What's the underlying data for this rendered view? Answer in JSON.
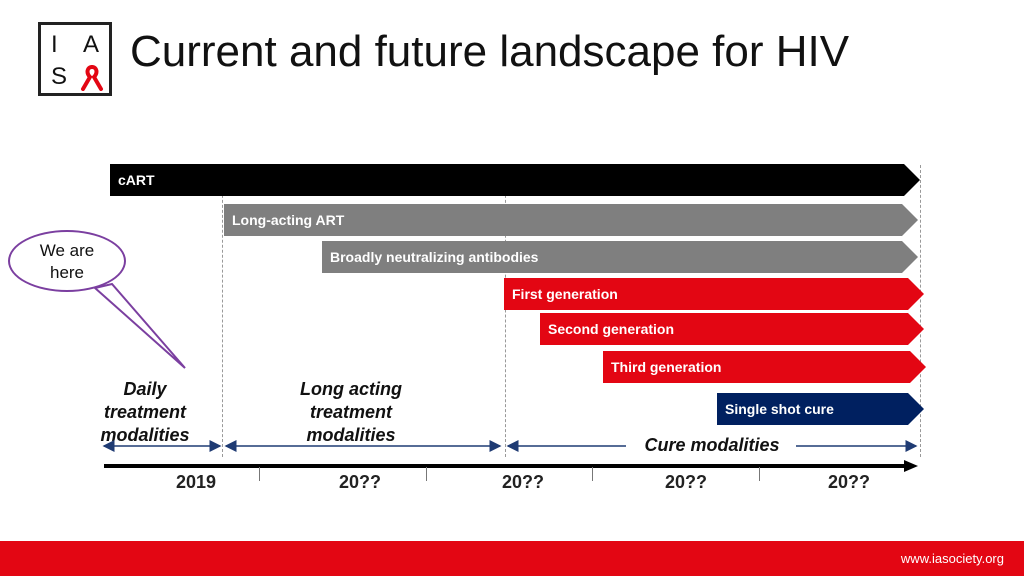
{
  "logo": {
    "letters": [
      "I",
      "A",
      "S"
    ],
    "icon": "red-ribbon-icon"
  },
  "title": "Current and future landscape for HIV",
  "bars": [
    {
      "id": "cart",
      "label": "cART",
      "color": "#000000"
    },
    {
      "id": "long-acting-art",
      "label": "Long-acting ART",
      "color": "#7f7f7f"
    },
    {
      "id": "bnabs",
      "label": "Broadly neutralizing antibodies",
      "color": "#7f7f7f"
    },
    {
      "id": "first-gen",
      "label": "First generation",
      "color": "#e30613"
    },
    {
      "id": "second-gen",
      "label": "Second generation",
      "color": "#e30613"
    },
    {
      "id": "third-gen",
      "label": "Third generation",
      "color": "#e30613"
    },
    {
      "id": "single-shot",
      "label": "Single shot cure",
      "color": "#002060"
    }
  ],
  "callout": {
    "text_line1": "We are",
    "text_line2": "here"
  },
  "modalities": {
    "daily": [
      "Daily",
      "treatment",
      "modalities"
    ],
    "long_acting": [
      "Long acting",
      "treatment",
      "modalities"
    ],
    "cure": "Cure modalities"
  },
  "timeline": {
    "years": [
      "2019",
      "20??",
      "20??",
      "20??",
      "20??"
    ]
  },
  "footer": {
    "url": "www.iasociety.org",
    "color": "#e30613"
  }
}
